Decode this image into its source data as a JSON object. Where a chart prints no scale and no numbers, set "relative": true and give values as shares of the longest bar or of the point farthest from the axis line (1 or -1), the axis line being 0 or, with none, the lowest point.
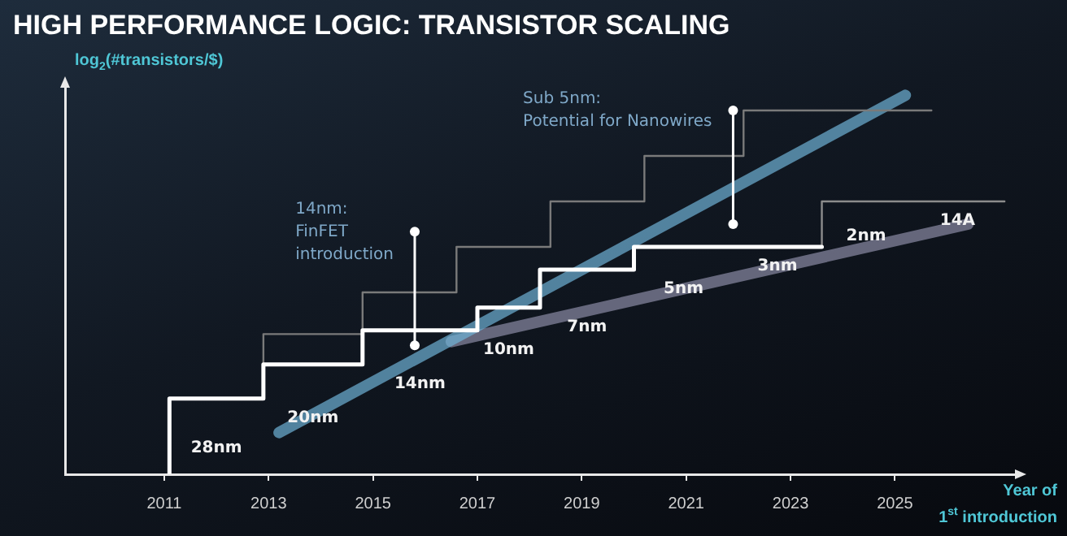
{
  "chart_data": {
    "type": "step",
    "title": "HIGH PERFORMANCE LOGIC: TRANSISTOR SCALING",
    "ylabel": "log$_{2}$(#transistors/$)",
    "xlabel": "Year of\n1$^{st}$ introduction",
    "relative": true,
    "xlim": [
      2009.1,
      2027.3
    ],
    "xticks": [
      2011,
      2013,
      2015,
      2017,
      2019,
      2021,
      2023,
      2025
    ],
    "tick_labels": "x",
    "grid": false,
    "legend": false,
    "series": [
      {
        "color": "#ffffff",
        "x": [
          2011.1,
          2011.1,
          2012.9,
          2014.8,
          2017.0,
          2018.2,
          2020.0,
          2021.9,
          2023.6
        ],
        "values": [
          0,
          0.12,
          0.2,
          0.29,
          0.38,
          0.44,
          0.54,
          0.6,
          0.6
        ]
      },
      {
        "color": "#8c8c8c",
        "x": [
          2023.6,
          2023.6,
          2025.3,
          2027.1
        ],
        "values": [
          0.6,
          0.68,
          0.72,
          0.72
        ]
      },
      {
        "color": "#7a7a7a",
        "x": [
          2012.9,
          2012.9,
          2014.8,
          2016.6,
          2018.4,
          2020.2,
          2022.1,
          2023.9,
          2025.7
        ],
        "values": [
          0.2,
          0.25,
          0.37,
          0.48,
          0.6,
          0.72,
          0.84,
          0.96,
          0.96
        ]
      },
      {
        "type": "line",
        "color": "#6fb3d8",
        "x": [
          2013.2,
          2025.2
        ],
        "values": [
          0.11,
          1
        ]
      },
      {
        "type": "line",
        "color": "#8d8ca6",
        "x": [
          2016.5,
          2026.4
        ],
        "values": [
          0.35,
          0.66
        ]
      }
    ],
    "annotations": [
      "28nm",
      "20nm",
      "14nm",
      "10nm",
      "7nm",
      "5nm",
      "3nm",
      "2nm",
      "14A",
      {
        "text": "14nm:\nFinFET\nintroduction",
        "x": 2015.8,
        "y": 0.34
      },
      {
        "text": "Sub 5nm:\nPotential for Nanowires",
        "x": 2021.9,
        "y": 0.66
      }
    ]
  }
}
